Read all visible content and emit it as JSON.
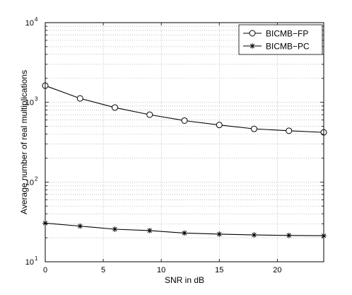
{
  "chart_data": {
    "type": "line",
    "xlabel": "SNR in dB",
    "ylabel": "Average number of real multiplications",
    "xlim": [
      0,
      24
    ],
    "ylim": [
      10,
      10000
    ],
    "yscale": "log",
    "grid": true,
    "legend_position": "top-right",
    "x_ticks": [
      0,
      5,
      10,
      15,
      20
    ],
    "x_tick_labels": [
      "0",
      "5",
      "10",
      "15",
      "20"
    ],
    "y_ticks": [
      10,
      100,
      1000,
      10000
    ],
    "y_tick_labels": [
      {
        "base": "10",
        "exp": "1"
      },
      {
        "base": "10",
        "exp": "2"
      },
      {
        "base": "10",
        "exp": "3"
      },
      {
        "base": "10",
        "exp": "4"
      }
    ],
    "x": [
      0,
      3,
      6,
      9,
      12,
      15,
      18,
      21,
      24
    ],
    "series": [
      {
        "name": "BICMB−FP",
        "marker": "circle",
        "color": "#000000",
        "values": [
          1620,
          1120,
          860,
          700,
          590,
          520,
          465,
          440,
          420
        ]
      },
      {
        "name": "BICMB−PC",
        "marker": "star",
        "color": "#000000",
        "values": [
          30.5,
          28.0,
          25.6,
          24.6,
          22.9,
          22.2,
          21.7,
          21.4,
          21.2
        ]
      }
    ]
  }
}
